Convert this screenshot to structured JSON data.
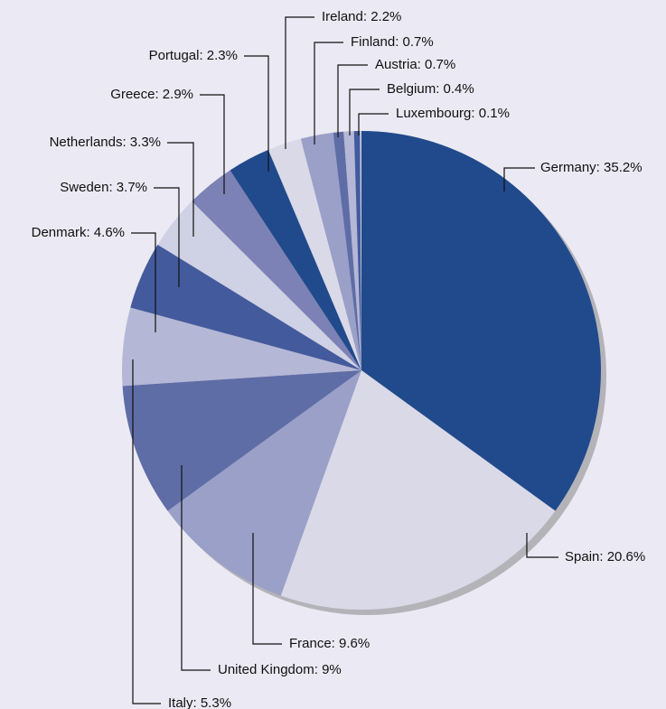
{
  "chart_data": {
    "type": "pie",
    "values": [
      35.2,
      20.6,
      9.6,
      9,
      5.3,
      4.6,
      3.7,
      3.3,
      2.9,
      2.3,
      2.2,
      0.7,
      0.7,
      0.4,
      0.1
    ],
    "value_labels": [
      "Germany: 35.2%",
      "Spain: 20.6%",
      "France: 9.6%",
      "United Kingdom: 9%",
      "Italy: 5.3%",
      "Denmark: 4.6%",
      "Sweden: 3.7%",
      "Netherlands: 3.3%",
      "Greece: 2.9%",
      "Portugal: 2.3%",
      "Ireland: 2.2%",
      "Finland: 0.7%",
      "Austria: 0.7%",
      "Belgium: 0.4%",
      "Luxembourg: 0.1%"
    ],
    "colors": [
      "#214a8c",
      "#d9d9e8",
      "#9aa0c8",
      "#5f6da6",
      "#b4b7d6",
      "#435a9c",
      "#cfd1e4",
      "#7c82b5",
      "#214a8c",
      "#d9d9e8",
      "#9aa0c8",
      "#5f6da6",
      "#b4b7d6",
      "#435a9c",
      "#cfd1e4"
    ]
  }
}
